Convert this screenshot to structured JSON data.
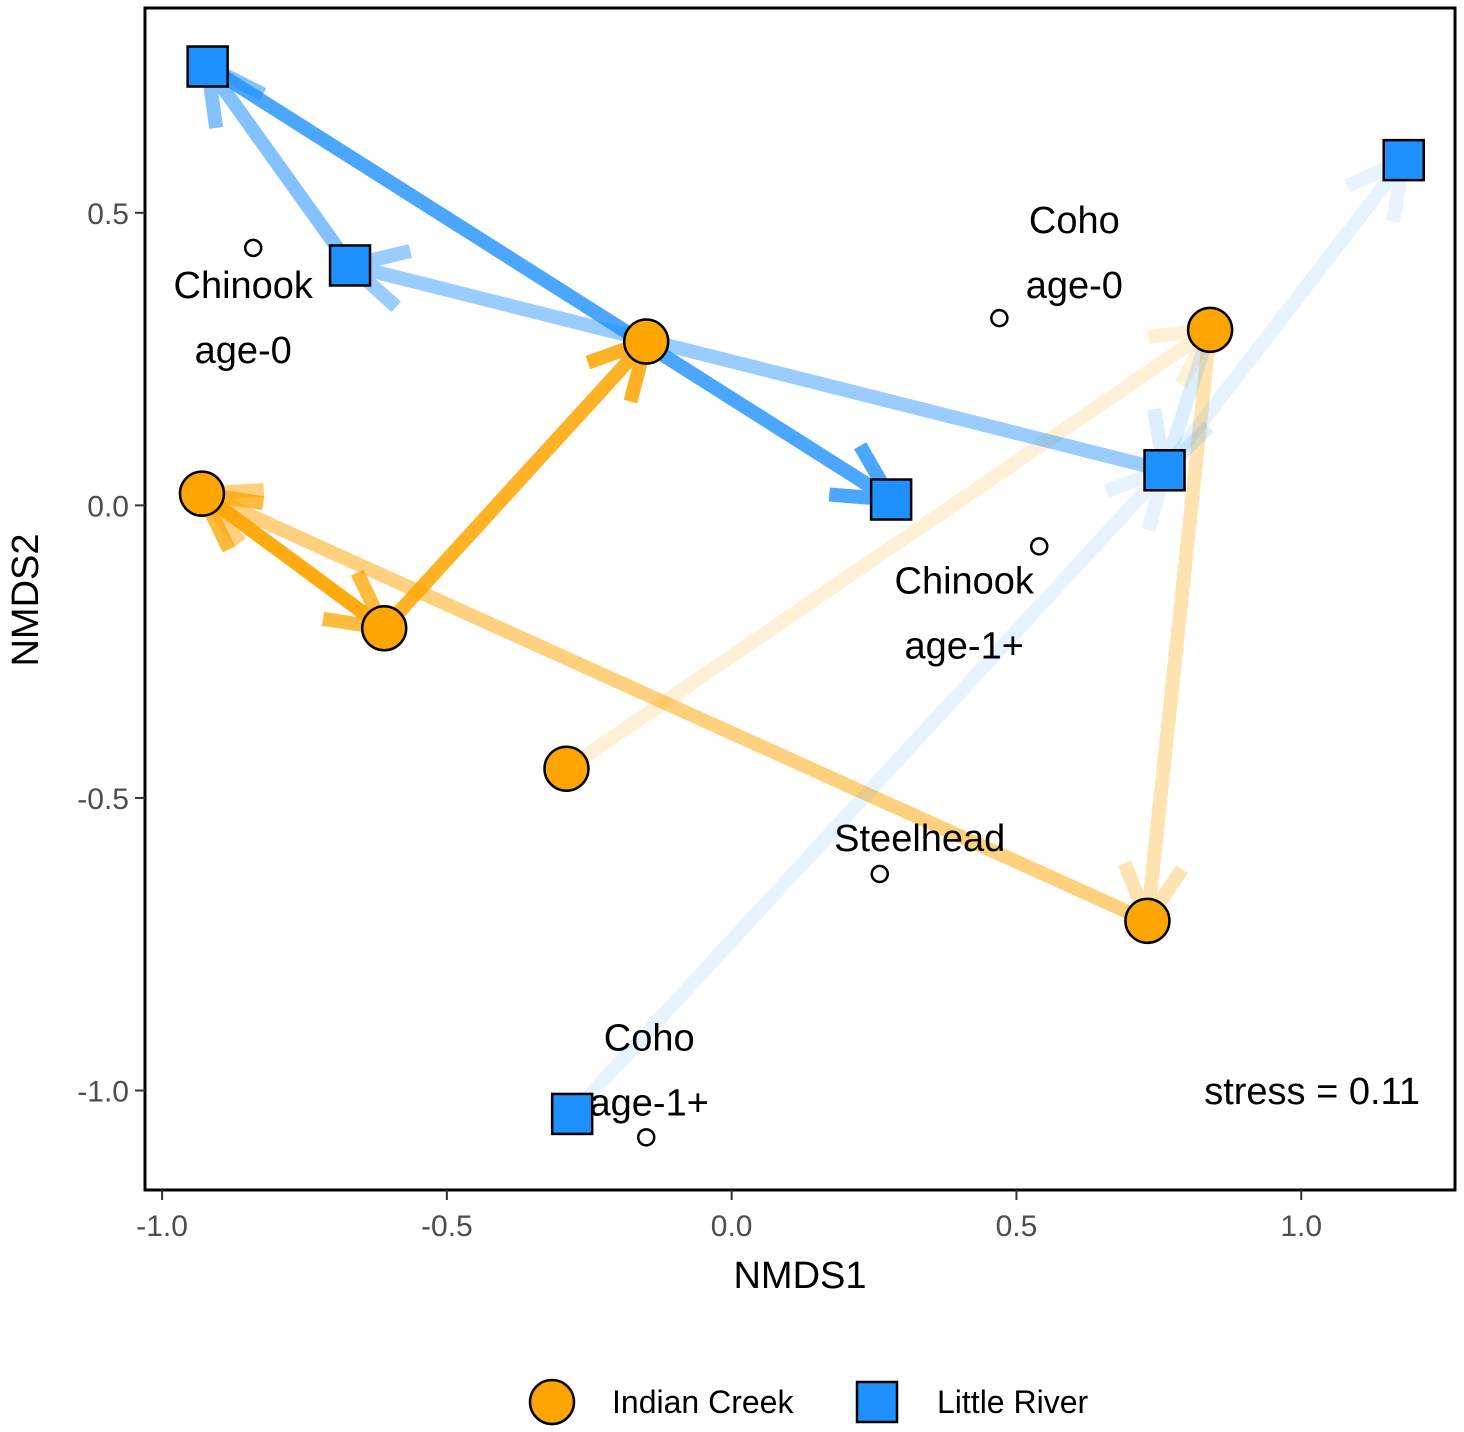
{
  "chart_data": {
    "type": "scatter",
    "xlabel": "NMDS1",
    "ylabel": "NMDS2",
    "xlim": [
      -1.03,
      1.27
    ],
    "ylim": [
      -1.17,
      0.85
    ],
    "xticks": [
      -1.0,
      -0.5,
      0.0,
      0.5,
      1.0
    ],
    "xtick_labels": [
      "-1.0",
      "-0.5",
      "0.0",
      "0.5",
      "1.0"
    ],
    "yticks": [
      -1.0,
      -0.5,
      0.0,
      0.5
    ],
    "ytick_labels": [
      "-1.0",
      "-0.5",
      "0.0",
      "0.5"
    ],
    "grid": false,
    "annotation": "stress = 0.11",
    "series": [
      {
        "name": "Indian Creek",
        "marker": "circle",
        "color": "#FFA500",
        "points": [
          {
            "x": -0.93,
            "y": 0.02
          },
          {
            "x": -0.61,
            "y": -0.21
          },
          {
            "x": -0.15,
            "y": 0.28
          },
          {
            "x": -0.29,
            "y": -0.45
          },
          {
            "x": 0.84,
            "y": 0.3
          },
          {
            "x": 0.73,
            "y": -0.71
          }
        ],
        "arrows": [
          {
            "from": [
              -0.61,
              -0.21
            ],
            "to": [
              -0.93,
              0.02
            ],
            "opacity": 0.75
          },
          {
            "from": [
              -0.93,
              0.02
            ],
            "to": [
              -0.61,
              -0.21
            ],
            "opacity": 0.75
          },
          {
            "from": [
              -0.61,
              -0.21
            ],
            "to": [
              -0.15,
              0.28
            ],
            "opacity": 0.85
          },
          {
            "from": [
              -0.29,
              -0.45
            ],
            "to": [
              0.84,
              0.3
            ],
            "opacity": 0.15
          },
          {
            "from": [
              0.84,
              0.3
            ],
            "to": [
              0.73,
              -0.71
            ],
            "opacity": 0.3
          },
          {
            "from": [
              0.73,
              -0.71
            ],
            "to": [
              -0.93,
              0.02
            ],
            "opacity": 0.5
          }
        ]
      },
      {
        "name": "Little River",
        "marker": "square",
        "color": "#1E90FF",
        "points": [
          {
            "x": -0.92,
            "y": 0.75
          },
          {
            "x": -0.67,
            "y": 0.41
          },
          {
            "x": 0.28,
            "y": 0.01
          },
          {
            "x": 0.76,
            "y": 0.06
          },
          {
            "x": 1.18,
            "y": 0.59
          },
          {
            "x": -0.28,
            "y": -1.04
          }
        ],
        "arrows": [
          {
            "from": [
              -0.67,
              0.41
            ],
            "to": [
              -0.92,
              0.75
            ],
            "opacity": 0.55
          },
          {
            "from": [
              -0.92,
              0.75
            ],
            "to": [
              0.28,
              0.01
            ],
            "opacity": 0.8
          },
          {
            "from": [
              0.76,
              0.06
            ],
            "to": [
              -0.67,
              0.41
            ],
            "opacity": 0.45
          },
          {
            "from": [
              0.84,
              0.3
            ],
            "to": [
              0.76,
              0.06
            ],
            "opacity": 0.15
          },
          {
            "from": [
              0.76,
              0.06
            ],
            "to": [
              1.18,
              0.59
            ],
            "opacity": 0.1
          },
          {
            "from": [
              -0.28,
              -1.04
            ],
            "to": [
              0.76,
              0.06
            ],
            "opacity": 0.1
          }
        ]
      }
    ],
    "species": [
      {
        "lines": [
          "Chinook",
          "age-0"
        ],
        "point": {
          "x": -0.84,
          "y": 0.44
        }
      },
      {
        "lines": [
          "Coho",
          "age-0"
        ],
        "point": {
          "x": 0.47,
          "y": 0.32
        }
      },
      {
        "lines": [
          "Chinook",
          "age-1+"
        ],
        "point": {
          "x": 0.54,
          "y": -0.07
        }
      },
      {
        "lines": [
          "Steelhead"
        ],
        "point": {
          "x": 0.26,
          "y": -0.63
        }
      },
      {
        "lines": [
          "Coho",
          "age-1+"
        ],
        "point": {
          "x": -0.15,
          "y": -1.08
        }
      }
    ],
    "legend": {
      "placement": "bottom",
      "entries": [
        {
          "label": "Indian Creek",
          "marker": "circle",
          "color": "#FFA500"
        },
        {
          "label": "Little River",
          "marker": "square",
          "color": "#1E90FF"
        }
      ]
    }
  }
}
